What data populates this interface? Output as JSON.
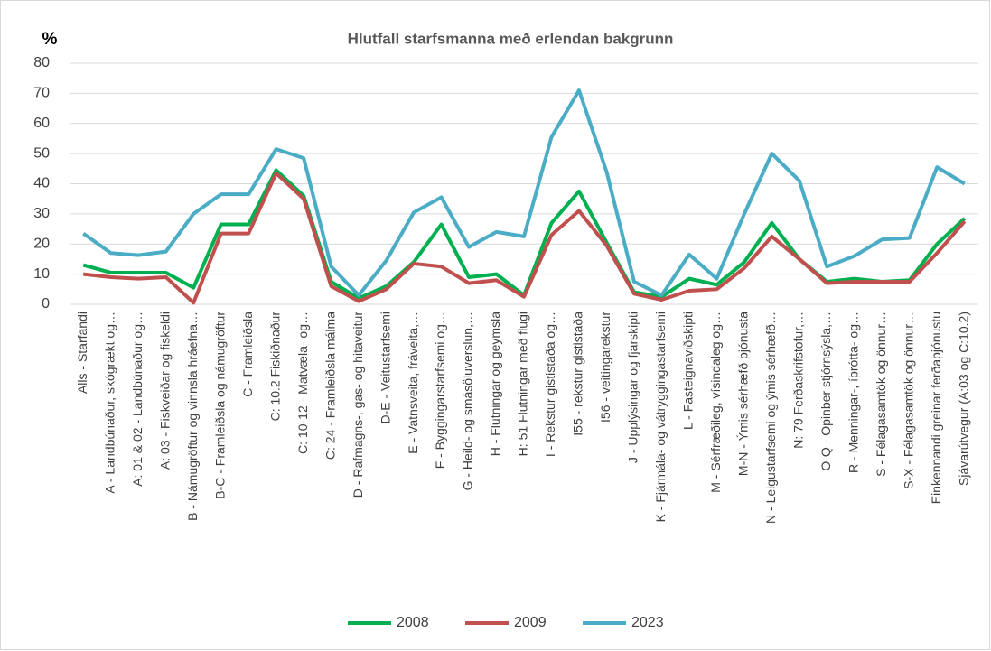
{
  "chart_data": {
    "type": "line",
    "title": "Hlutfall starfsmanna með erlendan bakgrunn",
    "y_label": "%",
    "categories": [
      "Alls - Starfandi",
      "A - Landbúnaður, skógrækt og…",
      "A: 01 & 02 - Landbúnaður og…",
      "A: 03 - Fiskveiðar og fiskeldi",
      "B - Námugröftur og vinnsla hráefna…",
      "B-C - Framleiðsla og námugröftur",
      "C - Framleiðsla",
      "C: 10.2 Fiskiðnaður",
      "C: 10-12 - Matvæla- og…",
      "C: 24 - Framleiðsla málma",
      "D - Rafmagns-, gas- og hitaveitur",
      "D-E - Veitustarfsemi",
      "E - Vatnsveita, fráveita,…",
      "F - Byggingarstarfsemi og…",
      "G - Heild- og smásöluverslun,…",
      "H - Flutningar og geymsla",
      "H: 51 Flutningar með flugi",
      "I - Rekstur gististaða og…",
      "I55 - rekstur gististaða",
      "I56 - veitingarekstur",
      "J - Upplýsingar og fjarskipti",
      "K - Fjármála- og vátryggingastarfsemi",
      "L - Fasteignaviðskipti",
      "M - Sérfræðileg, vísindaleg og…",
      "M-N - Ýmis sérhæfð þjónusta",
      "N - Leigustarfsemi og ýmis sérhæfð…",
      "N: 79 Ferðaskrifstofur,…",
      "O-Q - Opinber stjórnsýsla,…",
      "R - Menningar-, íþrótta- og…",
      "S - Félagasamtök og önnur…",
      "S-X - Félagasamtök og önnur…",
      "Einkennandi greinar ferðaþjónustu",
      "Sjávarútvegur (A:03 og C:10.2)"
    ],
    "series": [
      {
        "name": "2008",
        "color": "#00b050",
        "values": [
          13,
          10.5,
          10.5,
          10.5,
          5.5,
          26.5,
          26.5,
          44.5,
          36,
          7.5,
          2,
          6,
          14,
          26.5,
          9,
          10,
          3,
          27,
          37.5,
          20.5,
          4,
          2.5,
          8.5,
          6.5,
          14,
          27,
          15,
          7.5,
          8.5,
          7.5,
          8,
          20,
          28.5
        ]
      },
      {
        "name": "2009",
        "color": "#c0504d",
        "values": [
          10,
          9,
          8.5,
          9,
          0.5,
          23.5,
          23.5,
          43.5,
          35,
          6,
          1,
          5,
          13.5,
          12.5,
          7,
          8,
          2.5,
          23,
          31,
          19.5,
          3.5,
          1.5,
          4.5,
          5,
          12,
          22.5,
          15,
          7,
          7.5,
          7.5,
          7.5,
          17,
          27.5
        ]
      },
      {
        "name": "2023",
        "color": "#4bacc6",
        "values": [
          23.5,
          17,
          16.3,
          17.5,
          30,
          36.5,
          36.5,
          51.5,
          48.5,
          12.5,
          3,
          14.5,
          30.5,
          35.5,
          19,
          24,
          22.5,
          55.5,
          71,
          44,
          7.5,
          3,
          16.5,
          8.5,
          30,
          50,
          41,
          12.5,
          16,
          21.5,
          22,
          45.5,
          40
        ]
      }
    ],
    "ylim": [
      0,
      80
    ],
    "yticks": [
      0,
      10,
      20,
      30,
      40,
      50,
      60,
      70,
      80
    ],
    "grid": true,
    "legend": "bottom"
  }
}
